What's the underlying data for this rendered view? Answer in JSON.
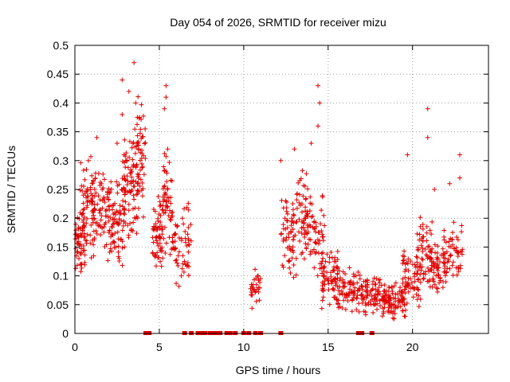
{
  "chart_data": {
    "type": "scatter",
    "title": "Day 054 of 2026, SRMTID for receiver mizu",
    "xlabel": "GPS time / hours",
    "ylabel": "SRMTID / TECUs",
    "xlim": [
      0,
      24.5
    ],
    "ylim": [
      0,
      0.5
    ],
    "xticks": [
      0,
      5,
      10,
      15,
      20
    ],
    "xtick_labels": [
      "0",
      "5",
      "10",
      "15",
      "20"
    ],
    "yticks": [
      0,
      0.05,
      0.1,
      0.15,
      0.2,
      0.25,
      0.3,
      0.35,
      0.4,
      0.45,
      0.5
    ],
    "ytick_labels": [
      "0",
      "0.05",
      "0.1",
      "0.15",
      "0.2",
      "0.25",
      "0.3",
      "0.35",
      "0.4",
      "0.45",
      "0.5"
    ],
    "grid": true,
    "marker": "+",
    "color": "#e00000",
    "series": [
      {
        "name": "SRMTID",
        "clusters": [
          {
            "x": [
              0.0,
              0.6
            ],
            "y": [
              0.1,
              0.22
            ],
            "n": 60
          },
          {
            "x": [
              0.3,
              1.2
            ],
            "y": [
              0.12,
              0.32
            ],
            "n": 60
          },
          {
            "x": [
              1.0,
              2.2
            ],
            "y": [
              0.12,
              0.3
            ],
            "n": 80
          },
          {
            "x": [
              2.0,
              3.0
            ],
            "y": [
              0.1,
              0.28
            ],
            "n": 70
          },
          {
            "x": [
              2.8,
              3.8
            ],
            "y": [
              0.15,
              0.35
            ],
            "n": 80
          },
          {
            "x": [
              3.4,
              4.2
            ],
            "y": [
              0.18,
              0.42
            ],
            "n": 60
          },
          {
            "x": [
              4.6,
              5.2
            ],
            "y": [
              0.1,
              0.25
            ],
            "n": 60
          },
          {
            "x": [
              5.2,
              5.8
            ],
            "y": [
              0.12,
              0.33
            ],
            "n": 50
          },
          {
            "x": [
              5.7,
              6.9
            ],
            "y": [
              0.08,
              0.24
            ],
            "n": 60
          },
          {
            "x": [
              10.4,
              11.0
            ],
            "y": [
              0.04,
              0.12
            ],
            "n": 30
          },
          {
            "x": [
              12.2,
              13.0
            ],
            "y": [
              0.08,
              0.25
            ],
            "n": 50
          },
          {
            "x": [
              12.8,
              13.8
            ],
            "y": [
              0.1,
              0.3
            ],
            "n": 60
          },
          {
            "x": [
              13.6,
              14.8
            ],
            "y": [
              0.08,
              0.25
            ],
            "n": 60
          },
          {
            "x": [
              14.6,
              15.6
            ],
            "y": [
              0.04,
              0.15
            ],
            "n": 70
          },
          {
            "x": [
              15.4,
              17.0
            ],
            "y": [
              0.03,
              0.12
            ],
            "n": 90
          },
          {
            "x": [
              17.0,
              18.4
            ],
            "y": [
              0.03,
              0.1
            ],
            "n": 80
          },
          {
            "x": [
              18.2,
              19.6
            ],
            "y": [
              0.02,
              0.09
            ],
            "n": 90
          },
          {
            "x": [
              19.4,
              20.4
            ],
            "y": [
              0.04,
              0.15
            ],
            "n": 60
          },
          {
            "x": [
              20.2,
              21.2
            ],
            "y": [
              0.05,
              0.22
            ],
            "n": 60
          },
          {
            "x": [
              21.0,
              22.0
            ],
            "y": [
              0.06,
              0.16
            ],
            "n": 60
          },
          {
            "x": [
              21.8,
              23.0
            ],
            "y": [
              0.08,
              0.2
            ],
            "n": 60
          }
        ],
        "spikes": [
          [
            1.3,
            0.34
          ],
          [
            2.5,
            0.33
          ],
          [
            2.8,
            0.38
          ],
          [
            2.8,
            0.44
          ],
          [
            3.2,
            0.42
          ],
          [
            3.5,
            0.47
          ],
          [
            3.6,
            0.4
          ],
          [
            5.4,
            0.43
          ],
          [
            5.4,
            0.41
          ],
          [
            5.3,
            0.39
          ],
          [
            12.2,
            0.3
          ],
          [
            13.0,
            0.32
          ],
          [
            14.0,
            0.33
          ],
          [
            14.4,
            0.43
          ],
          [
            14.5,
            0.4
          ],
          [
            14.4,
            0.36
          ],
          [
            19.7,
            0.31
          ],
          [
            20.9,
            0.39
          ],
          [
            20.9,
            0.34
          ],
          [
            21.3,
            0.25
          ],
          [
            22.8,
            0.31
          ],
          [
            22.8,
            0.27
          ],
          [
            22.2,
            0.26
          ],
          [
            0.5,
            0.24
          ],
          [
            0.8,
            0.3
          ],
          [
            5.5,
            0.32
          ]
        ],
        "zero_points_x": [
          4.2,
          4.4,
          6.5,
          6.9,
          7.3,
          7.5,
          7.7,
          8.0,
          8.2,
          8.4,
          8.6,
          9.0,
          9.2,
          9.5,
          10.0,
          10.3,
          10.7,
          11.0,
          12.2,
          16.8,
          17.0,
          17.6
        ]
      }
    ]
  }
}
